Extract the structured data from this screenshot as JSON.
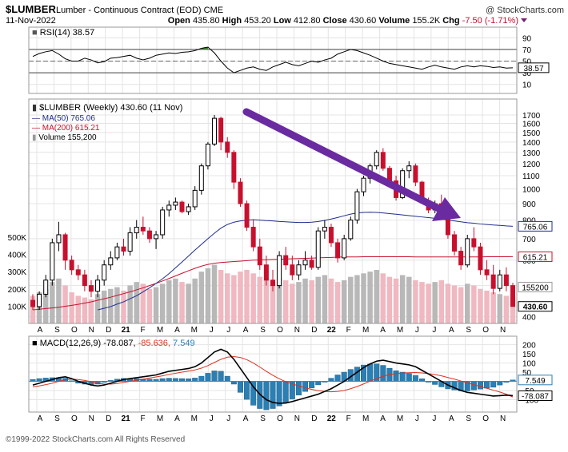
{
  "header": {
    "symbol": "$LUMBER",
    "description": "Lumber - Continuous Contract (EOD)",
    "exchange": "CME",
    "date": "11-Nov-2022",
    "open_label": "Open",
    "open": "435.80",
    "high_label": "High",
    "high": "453.20",
    "low_label": "Low",
    "low": "412.80",
    "close_label": "Close",
    "close": "430.60",
    "volume_label": "Volume",
    "volume": "155.2K",
    "chg_label": "Chg",
    "chg": "-7.50 (-1.71%)",
    "watermark": "@ StockCharts.com"
  },
  "footer": {
    "copyright": "©1999-2022 StockCharts.com All Rights Reserved"
  },
  "colors": {
    "up": "#000000",
    "down": "#c8102e",
    "ma50": "#1f2d8c",
    "ma200": "#c8102e",
    "vol_up": "#b8b8b8",
    "vol_down": "#f0b8c0",
    "arrow": "#6a2aa0",
    "rsi_fill": "#3a7d2a",
    "macd_hist": "#2a7fb4",
    "macd_signal": "#e0301e"
  },
  "x_axis": {
    "labels": [
      "A",
      "S",
      "O",
      "N",
      "D",
      "21",
      "F",
      "M",
      "A",
      "M",
      "J",
      "J",
      "A",
      "S",
      "O",
      "N",
      "D",
      "22",
      "F",
      "M",
      "A",
      "M",
      "J",
      "J",
      "A",
      "S",
      "O",
      "N"
    ],
    "bold_labels": [
      "21",
      "22"
    ]
  },
  "chart_data": [
    {
      "type": "line",
      "panel": "rsi",
      "legend": "RSI(14)",
      "last_value": "38.57",
      "series_value": 38.57,
      "yticks": [
        90,
        70,
        50,
        30,
        10
      ],
      "reference_lines": [
        70,
        50,
        30
      ],
      "ylim": [
        0,
        100
      ],
      "series": [
        {
          "name": "RSI(14)",
          "values": [
            58,
            63,
            66,
            68,
            62,
            54,
            50,
            50,
            55,
            52,
            47,
            49,
            55,
            56,
            58,
            60,
            55,
            52,
            55,
            60,
            62,
            64,
            63,
            65,
            66,
            68,
            72,
            74,
            64,
            50,
            38,
            30,
            34,
            38,
            40,
            36,
            34,
            40,
            44,
            48,
            44,
            42,
            46,
            50,
            48,
            52,
            55,
            62,
            66,
            70,
            68,
            64,
            60,
            55,
            50,
            46,
            44,
            42,
            40,
            38,
            36,
            40,
            43,
            40,
            38,
            36,
            40,
            42,
            40,
            42,
            41,
            39,
            40,
            38,
            38.57
          ]
        }
      ]
    },
    {
      "type": "candlestick",
      "panel": "price",
      "legend_title": "$LUMBER (Weekly) 430.60 (11 Nov)",
      "legend_ma50": "MA(50) 765.06",
      "legend_ma200": "MA(200) 615.21",
      "legend_volume": "Volume 155,200",
      "price_scale": "log",
      "ylim": [
        390,
        1800
      ],
      "yticks": [
        1700,
        1600,
        1500,
        1400,
        1300,
        1200,
        1100,
        1000,
        900,
        800,
        700,
        600,
        500,
        400
      ],
      "volume_ticks": [
        "500K",
        "400K",
        "300K",
        "200K",
        "100K"
      ],
      "volume_ylim": [
        0,
        1300000
      ],
      "price_tags": [
        {
          "label": "765.06",
          "value": 765.06,
          "key": "ma50"
        },
        {
          "label": "615.21",
          "value": 615.21,
          "key": "ma200"
        },
        {
          "label": "430.60",
          "value": 430.6,
          "key": "close"
        }
      ],
      "volume_tag": {
        "label": "155200",
        "value": 155200
      },
      "ma50": [
        null,
        null,
        null,
        null,
        null,
        null,
        null,
        null,
        null,
        null,
        420,
        425,
        430,
        438,
        445,
        455,
        465,
        478,
        492,
        508,
        525,
        545,
        568,
        592,
        618,
        645,
        672,
        700,
        728,
        755,
        775,
        788,
        795,
        800,
        802,
        800,
        797,
        795,
        792,
        790,
        788,
        786,
        786,
        788,
        792,
        798,
        806,
        815,
        825,
        835,
        842,
        845,
        846,
        845,
        842,
        838,
        834,
        830,
        826,
        822,
        818,
        814,
        810,
        805,
        800,
        795,
        790,
        785,
        782,
        778,
        775,
        772,
        770,
        767,
        765.06
      ],
      "ma200": [
        420,
        422,
        424,
        426,
        428,
        431,
        434,
        437,
        441,
        445,
        450,
        455,
        460,
        466,
        472,
        478,
        485,
        492,
        500,
        508,
        517,
        526,
        536,
        546,
        556,
        566,
        575,
        582,
        587,
        590,
        592,
        594,
        596,
        598,
        600,
        601,
        602,
        603,
        604,
        605,
        606,
        607,
        608,
        609,
        610,
        611,
        612,
        613,
        614,
        614,
        614,
        615,
        615,
        615,
        615,
        615,
        615,
        615,
        615,
        614,
        614,
        614,
        614,
        614,
        614,
        614,
        614,
        614,
        614,
        614,
        615,
        615,
        615,
        615,
        615.21
      ],
      "ohlc": [
        [
          450,
          470,
          420,
          430
        ],
        [
          430,
          480,
          420,
          470
        ],
        [
          470,
          540,
          460,
          520
        ],
        [
          520,
          700,
          500,
          680
        ],
        [
          680,
          790,
          640,
          720
        ],
        [
          720,
          730,
          560,
          600
        ],
        [
          600,
          620,
          540,
          560
        ],
        [
          560,
          580,
          520,
          540
        ],
        [
          540,
          560,
          480,
          500
        ],
        [
          500,
          520,
          460,
          480
        ],
        [
          480,
          540,
          460,
          520
        ],
        [
          520,
          600,
          500,
          580
        ],
        [
          580,
          640,
          560,
          610
        ],
        [
          610,
          680,
          600,
          660
        ],
        [
          660,
          700,
          620,
          640
        ],
        [
          640,
          760,
          620,
          730
        ],
        [
          730,
          800,
          700,
          760
        ],
        [
          760,
          820,
          720,
          740
        ],
        [
          740,
          760,
          680,
          700
        ],
        [
          700,
          740,
          650,
          720
        ],
        [
          720,
          880,
          700,
          860
        ],
        [
          860,
          920,
          820,
          890
        ],
        [
          890,
          940,
          860,
          910
        ],
        [
          910,
          920,
          840,
          850
        ],
        [
          850,
          900,
          830,
          880
        ],
        [
          880,
          1020,
          860,
          990
        ],
        [
          990,
          1200,
          960,
          1180
        ],
        [
          1180,
          1400,
          1150,
          1380
        ],
        [
          1380,
          1700,
          1360,
          1660
        ],
        [
          1660,
          1680,
          1320,
          1400
        ],
        [
          1400,
          1450,
          1250,
          1300
        ],
        [
          1300,
          1320,
          1000,
          1050
        ],
        [
          1050,
          1080,
          880,
          900
        ],
        [
          900,
          920,
          740,
          760
        ],
        [
          760,
          800,
          640,
          660
        ],
        [
          660,
          700,
          560,
          580
        ],
        [
          580,
          620,
          500,
          520
        ],
        [
          520,
          560,
          480,
          500
        ],
        [
          500,
          640,
          490,
          620
        ],
        [
          620,
          660,
          560,
          580
        ],
        [
          580,
          620,
          520,
          540
        ],
        [
          540,
          600,
          520,
          580
        ],
        [
          580,
          640,
          560,
          600
        ],
        [
          600,
          620,
          560,
          570
        ],
        [
          570,
          760,
          560,
          740
        ],
        [
          740,
          800,
          700,
          760
        ],
        [
          760,
          780,
          660,
          680
        ],
        [
          680,
          700,
          590,
          610
        ],
        [
          610,
          720,
          600,
          700
        ],
        [
          700,
          820,
          690,
          800
        ],
        [
          800,
          1000,
          780,
          980
        ],
        [
          980,
          1100,
          950,
          1080
        ],
        [
          1080,
          1200,
          1040,
          1180
        ],
        [
          1180,
          1320,
          1150,
          1300
        ],
        [
          1300,
          1340,
          1140,
          1160
        ],
        [
          1160,
          1180,
          1040,
          1060
        ],
        [
          1060,
          1100,
          920,
          940
        ],
        [
          940,
          1160,
          930,
          1140
        ],
        [
          1140,
          1220,
          1080,
          1180
        ],
        [
          1180,
          1200,
          1020,
          1050
        ],
        [
          1050,
          1060,
          900,
          920
        ],
        [
          920,
          940,
          840,
          860
        ],
        [
          860,
          920,
          840,
          900
        ],
        [
          900,
          960,
          820,
          840
        ],
        [
          840,
          860,
          700,
          720
        ],
        [
          720,
          740,
          620,
          640
        ],
        [
          640,
          660,
          560,
          580
        ],
        [
          580,
          720,
          570,
          700
        ],
        [
          700,
          760,
          640,
          660
        ],
        [
          660,
          680,
          540,
          560
        ],
        [
          560,
          600,
          520,
          540
        ],
        [
          540,
          580,
          470,
          490
        ],
        [
          490,
          560,
          480,
          540
        ],
        [
          540,
          570,
          480,
          500
        ],
        [
          500,
          510,
          430,
          430.6
        ]
      ],
      "volume": [
        160000,
        180000,
        200000,
        240000,
        260000,
        220000,
        180000,
        160000,
        150000,
        140000,
        170000,
        190000,
        200000,
        210000,
        190000,
        220000,
        240000,
        230000,
        200000,
        210000,
        230000,
        250000,
        260000,
        240000,
        230000,
        260000,
        300000,
        320000,
        340000,
        310000,
        290000,
        280000,
        300000,
        310000,
        290000,
        270000,
        250000,
        240000,
        260000,
        250000,
        230000,
        240000,
        260000,
        250000,
        270000,
        280000,
        260000,
        240000,
        250000,
        270000,
        280000,
        290000,
        300000,
        310000,
        290000,
        270000,
        260000,
        280000,
        270000,
        250000,
        240000,
        230000,
        240000,
        250000,
        230000,
        220000,
        210000,
        230000,
        220000,
        200000,
        190000,
        180000,
        170000,
        160000,
        155200
      ]
    },
    {
      "type": "line",
      "panel": "macd",
      "legend_name": "MACD(12,26,9)",
      "legend_macd": "-78.087,",
      "legend_signal": "-85.636,",
      "legend_hist": "7.549",
      "yticks": [
        200,
        150,
        100,
        50,
        0,
        -50,
        -100
      ],
      "ylim": [
        -150,
        220
      ],
      "value_tags": [
        {
          "label": "7.549",
          "value": 7.549,
          "key": "hist"
        },
        {
          "label": "-78.087",
          "value": -78.087,
          "key": "macd"
        }
      ],
      "series": [
        {
          "name": "MACD",
          "values": [
            -20,
            -10,
            0,
            10,
            20,
            25,
            15,
            0,
            -10,
            -20,
            -25,
            -20,
            -10,
            0,
            10,
            15,
            20,
            25,
            30,
            35,
            45,
            55,
            60,
            65,
            70,
            80,
            100,
            130,
            160,
            175,
            160,
            120,
            70,
            20,
            -30,
            -70,
            -100,
            -115,
            -120,
            -118,
            -110,
            -100,
            -90,
            -80,
            -70,
            -55,
            -40,
            -20,
            0,
            25,
            50,
            75,
            95,
            110,
            115,
            108,
            100,
            95,
            90,
            80,
            60,
            40,
            20,
            0,
            -20,
            -35,
            -50,
            -60,
            -65,
            -70,
            -75,
            -80,
            -78,
            -75,
            -78.087
          ]
        },
        {
          "name": "Signal",
          "values": [
            -30,
            -25,
            -18,
            -10,
            0,
            8,
            12,
            10,
            5,
            -2,
            -10,
            -15,
            -15,
            -12,
            -6,
            0,
            6,
            12,
            18,
            24,
            30,
            38,
            44,
            50,
            56,
            62,
            72,
            86,
            103,
            120,
            132,
            135,
            130,
            118,
            100,
            78,
            55,
            33,
            14,
            -2,
            -14,
            -25,
            -35,
            -44,
            -51,
            -55,
            -57,
            -55,
            -50,
            -40,
            -28,
            -14,
            1,
            15,
            28,
            37,
            42,
            45,
            47,
            48,
            46,
            42,
            37,
            30,
            21,
            12,
            2,
            -8,
            -18,
            -28,
            -38,
            -48,
            -58,
            -70,
            -85.636
          ]
        },
        {
          "name": "Histogram",
          "values": [
            10,
            15,
            18,
            20,
            20,
            17,
            3,
            -10,
            -15,
            -18,
            -15,
            -5,
            5,
            12,
            16,
            15,
            14,
            13,
            12,
            11,
            15,
            17,
            16,
            15,
            14,
            18,
            28,
            44,
            57,
            55,
            28,
            -15,
            -60,
            -98,
            -130,
            -148,
            -155,
            -148,
            -134,
            -116,
            -96,
            -75,
            -55,
            -36,
            -19,
            0,
            17,
            35,
            50,
            65,
            78,
            89,
            94,
            95,
            87,
            71,
            58,
            50,
            43,
            32,
            14,
            -2,
            -17,
            -30,
            -41,
            -47,
            -52,
            -52,
            -47,
            -42,
            -37,
            -32,
            -20,
            -5,
            7.549
          ]
        }
      ]
    }
  ]
}
